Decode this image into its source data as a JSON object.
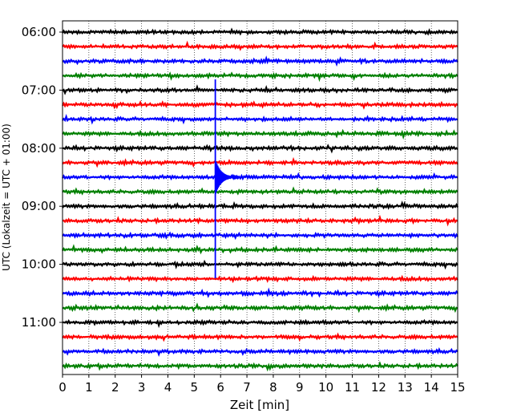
{
  "chart_data": {
    "type": "line",
    "title": "",
    "xlabel": "Zeit  [min]",
    "ylabel": "UTC (Lokalzeit = UTC + 01:00)",
    "xlim": [
      0,
      15
    ],
    "xticks": [
      0,
      1,
      2,
      3,
      4,
      5,
      6,
      7,
      8,
      9,
      10,
      11,
      12,
      13,
      14,
      15
    ],
    "ytick_labels": [
      "06:00",
      "07:00",
      "08:00",
      "09:00",
      "10:00",
      "11:00"
    ],
    "ytick_rows": [
      0,
      4,
      8,
      12,
      16,
      20
    ],
    "grid": "vertical dotted",
    "rows": [
      {
        "start": "06:00",
        "color": "#000000"
      },
      {
        "start": "06:15",
        "color": "#ff0000"
      },
      {
        "start": "06:30",
        "color": "#0000ff"
      },
      {
        "start": "06:45",
        "color": "#008000"
      },
      {
        "start": "07:00",
        "color": "#000000"
      },
      {
        "start": "07:15",
        "color": "#ff0000"
      },
      {
        "start": "07:30",
        "color": "#0000ff"
      },
      {
        "start": "07:45",
        "color": "#008000"
      },
      {
        "start": "08:00",
        "color": "#000000"
      },
      {
        "start": "08:15",
        "color": "#ff0000"
      },
      {
        "start": "08:30",
        "color": "#0000ff"
      },
      {
        "start": "08:45",
        "color": "#008000"
      },
      {
        "start": "09:00",
        "color": "#000000"
      },
      {
        "start": "09:15",
        "color": "#ff0000"
      },
      {
        "start": "09:30",
        "color": "#0000ff"
      },
      {
        "start": "09:45",
        "color": "#008000"
      },
      {
        "start": "10:00",
        "color": "#000000"
      },
      {
        "start": "10:15",
        "color": "#ff0000"
      },
      {
        "start": "10:30",
        "color": "#0000ff"
      },
      {
        "start": "10:45",
        "color": "#008000"
      },
      {
        "start": "11:00",
        "color": "#000000"
      },
      {
        "start": "11:15",
        "color": "#ff0000"
      },
      {
        "start": "11:30",
        "color": "#0000ff"
      },
      {
        "start": "11:45",
        "color": "#008000"
      }
    ],
    "events": [
      {
        "row": 10,
        "x_min": 5.8,
        "description": "large seismic event with coda on the 08:30 trace"
      }
    ]
  }
}
